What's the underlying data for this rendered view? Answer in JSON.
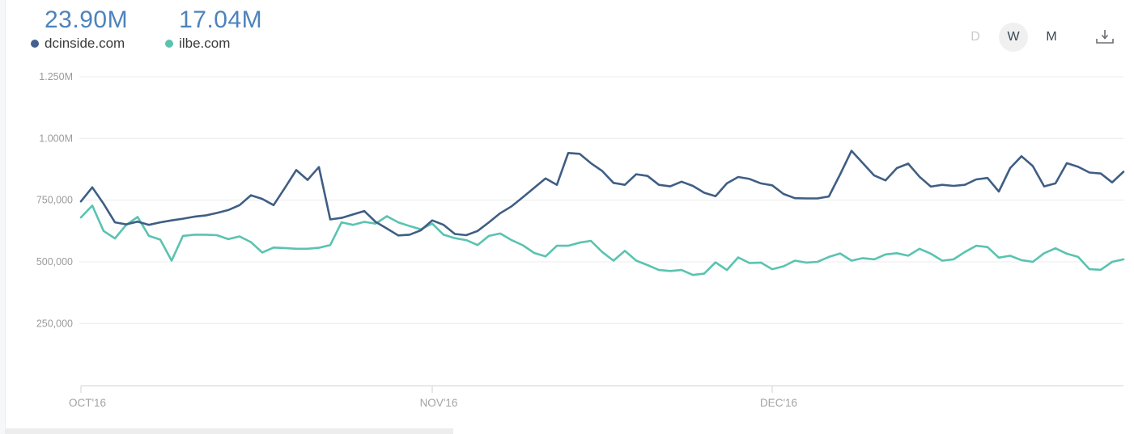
{
  "header": {
    "series_summary": [
      {
        "value": "23.90M",
        "label": "dcinside.com",
        "value_color": "#4d83bb",
        "dot_color": "#44608c"
      },
      {
        "value": "17.04M",
        "label": "ilbe.com",
        "value_color": "#4d83bb",
        "dot_color": "#5ac3b0"
      }
    ],
    "controls": {
      "daily_label": "D",
      "weekly_label": "W",
      "monthly_label": "M",
      "selected": "W",
      "download_icon": "download-tray-arrow"
    }
  },
  "chart_data": {
    "type": "line",
    "grid": true,
    "legend_position": "top-left",
    "unit": "visits (thousands)",
    "ylim": [
      0,
      1250
    ],
    "y_ticks": [
      {
        "label": "1.250M",
        "value": 1250
      },
      {
        "label": "1.000M",
        "value": 1000
      },
      {
        "label": "750,000",
        "value": 750
      },
      {
        "label": "500,000",
        "value": 500
      },
      {
        "label": "250,000",
        "value": 250
      }
    ],
    "x_ticks": [
      {
        "label": "OCT'16",
        "index": 0
      },
      {
        "label": "NOV'16",
        "index": 31
      },
      {
        "label": "DEC'16",
        "index": 61
      }
    ],
    "series": [
      {
        "name": "dcinside.com",
        "total_label": "23.90M",
        "color": "#3f5e84",
        "values": [
          745,
          802,
          735,
          660,
          652,
          663,
          650,
          660,
          668,
          675,
          683,
          688,
          698,
          710,
          730,
          770,
          755,
          730,
          800,
          872,
          832,
          884,
          672,
          678,
          692,
          706,
          662,
          635,
          607,
          610,
          628,
          668,
          650,
          613,
          608,
          625,
          660,
          697,
          725,
          762,
          800,
          838,
          812,
          941,
          938,
          900,
          868,
          820,
          812,
          855,
          848,
          812,
          806,
          825,
          808,
          780,
          766,
          818,
          844,
          836,
          818,
          810,
          775,
          758,
          757,
          757,
          765,
          855,
          950,
          900,
          850,
          830,
          880,
          898,
          845,
          805,
          812,
          808,
          812,
          834,
          840,
          785,
          880,
          928,
          888,
          806,
          818,
          900,
          885,
          862,
          858,
          822,
          865
        ]
      },
      {
        "name": "ilbe.com",
        "total_label": "17.04M",
        "color": "#5ac3b0",
        "values": [
          680,
          728,
          625,
          595,
          650,
          682,
          605,
          590,
          505,
          605,
          610,
          610,
          608,
          592,
          603,
          580,
          538,
          558,
          556,
          553,
          553,
          557,
          568,
          660,
          650,
          662,
          655,
          685,
          660,
          645,
          632,
          655,
          610,
          596,
          588,
          568,
          605,
          615,
          588,
          567,
          536,
          522,
          565,
          565,
          578,
          585,
          540,
          505,
          545,
          505,
          487,
          467,
          463,
          467,
          447,
          452,
          498,
          467,
          518,
          495,
          497,
          470,
          482,
          505,
          497,
          500,
          520,
          534,
          505,
          515,
          510,
          530,
          535,
          525,
          553,
          533,
          505,
          510,
          540,
          565,
          560,
          517,
          525,
          507,
          500,
          535,
          555,
          533,
          520,
          470,
          468,
          500,
          510
        ]
      }
    ],
    "axis_color": "#d2d2d2",
    "gridline_color": "#ebebeb",
    "tick_label_color": "#9b9b9b"
  }
}
